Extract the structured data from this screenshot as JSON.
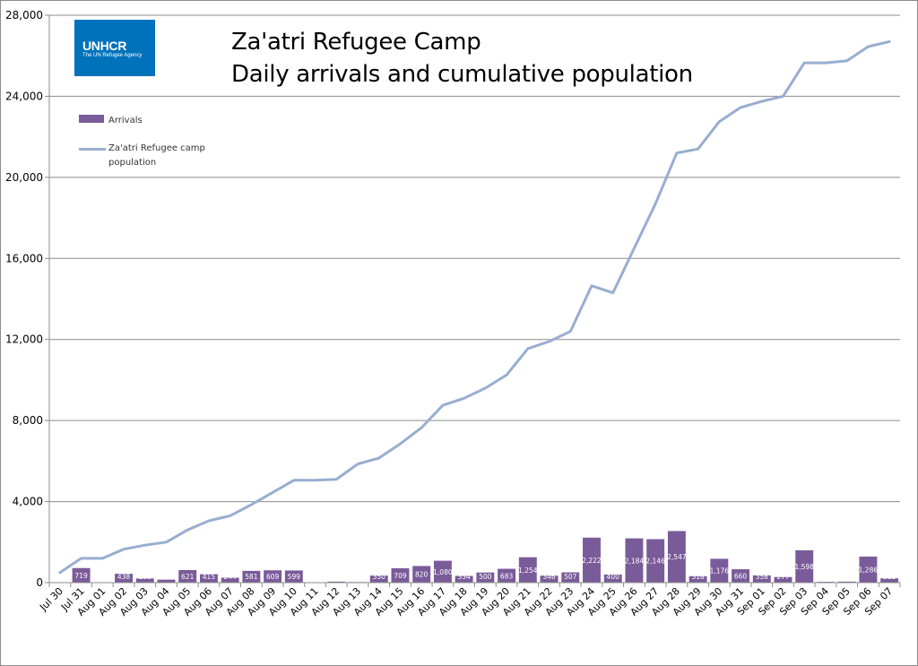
{
  "logo": {
    "main": "UNHCR",
    "sub": "The UN Refugee Agency"
  },
  "title": {
    "line1": "Za'atri Refugee Camp",
    "line2": "Daily arrivals and cumulative population"
  },
  "colors": {
    "bars": "#7a5b99",
    "line": "#98aed0",
    "grid": "#8c8c8c",
    "logo_bg": "#0072bc"
  },
  "chart_data": {
    "type": "bar",
    "title": "Za'atri Refugee Camp Daily arrivals and cumulative population",
    "xlabel": "",
    "ylabel": "",
    "ylim": [
      0,
      28000
    ],
    "yticks": [
      0,
      4000,
      8000,
      12000,
      16000,
      20000,
      24000,
      28000
    ],
    "ytick_labels": [
      "0",
      "4,000",
      "8,000",
      "12,000",
      "16,000",
      "20,000",
      "24,000",
      "28,000"
    ],
    "grid": true,
    "legend_position": "top-left",
    "categories": [
      "Jul 30",
      "Jul 31",
      "Aug 01",
      "Aug 02",
      "Aug 03",
      "Aug 04",
      "Aug 05",
      "Aug 06",
      "Aug 07",
      "Aug 08",
      "Aug 09",
      "Aug 10",
      "Aug 11",
      "Aug 12",
      "Aug 13",
      "Aug 14",
      "Aug 15",
      "Aug 16",
      "Aug 17",
      "Aug 18",
      "Aug 19",
      "Aug 20",
      "Aug 21",
      "Aug 22",
      "Aug 23",
      "Aug 24",
      "Aug 25",
      "Aug 26",
      "Aug 27",
      "Aug 28",
      "Aug 29",
      "Aug 30",
      "Aug 31",
      "Sep 01",
      "Sep 02",
      "Sep 03",
      "Sep 04",
      "Sep 05",
      "Sep 06",
      "Sep 07"
    ],
    "series": [
      {
        "name": "Arrivals",
        "type": "bar",
        "values": [
          0,
          719,
          0,
          438,
          206,
          148,
          621,
          415,
          244,
          581,
          609,
          599,
          0,
          50,
          30,
          350,
          709,
          820,
          1080,
          334,
          500,
          683,
          1254,
          346,
          507,
          2222,
          400,
          2184,
          2146,
          2547,
          318,
          1176,
          660,
          358,
          277,
          1598,
          40,
          50,
          1286,
          212
        ],
        "labels": [
          "",
          "719",
          "",
          "438",
          "206",
          "148",
          "621",
          "415",
          "244",
          "581",
          "609",
          "599",
          "",
          "",
          "",
          "350",
          "709",
          "820",
          "1,080",
          "334",
          "500",
          "683",
          "1,254",
          "346",
          "507",
          "2,222",
          "400",
          "2,184",
          "2,146",
          "2,547",
          "318",
          "1,176",
          "660",
          "358",
          "277",
          "1,598",
          "",
          "",
          "1,286",
          "212"
        ]
      },
      {
        "name": "Za'atri Refugee camp population",
        "type": "line",
        "values": [
          500,
          1200,
          1200,
          1650,
          1850,
          2000,
          2600,
          3050,
          3300,
          3850,
          4450,
          5050,
          5050,
          5100,
          5850,
          6150,
          6850,
          7650,
          8750,
          9100,
          9600,
          10250,
          11550,
          11900,
          12400,
          14650,
          14300,
          16500,
          18700,
          21200,
          21400,
          22750,
          23450,
          23750,
          24000,
          25650,
          25650,
          25750,
          26450,
          26700
        ]
      }
    ]
  }
}
